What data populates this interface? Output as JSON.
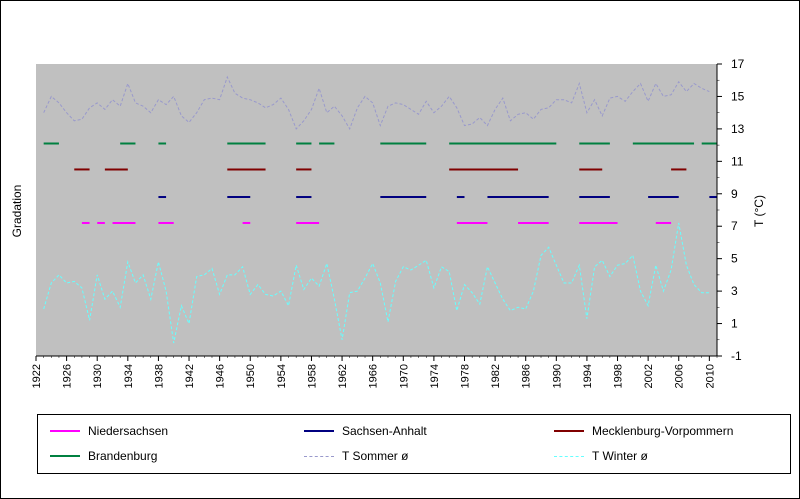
{
  "chart_data": {
    "type": "line",
    "ylabel_left": "Gradation",
    "ylabel_right": "T (°C)",
    "xlim": [
      1922,
      2011
    ],
    "ylim_right": [
      -1,
      17
    ],
    "x_ticks": [
      1922,
      1926,
      1930,
      1934,
      1938,
      1942,
      1946,
      1950,
      1954,
      1958,
      1962,
      1966,
      1970,
      1974,
      1978,
      1982,
      1986,
      1990,
      1994,
      1998,
      2002,
      2006,
      2010
    ],
    "y_ticks_right": [
      -1,
      1,
      3,
      5,
      7,
      9,
      11,
      13,
      15,
      17
    ],
    "grid": false,
    "plot_background": "#c0c0c0",
    "legend_position": "bottom",
    "series": [
      {
        "name": "Niedersachsen",
        "kind": "segments",
        "color": "#ff00ff",
        "level": 7.2,
        "segments": [
          [
            1928,
            1929
          ],
          [
            1930,
            1931
          ],
          [
            1932,
            1935
          ],
          [
            1938,
            1940
          ],
          [
            1949,
            1950
          ],
          [
            1956,
            1959
          ],
          [
            1977,
            1981
          ],
          [
            1985,
            1989
          ],
          [
            1993,
            1998
          ],
          [
            2003,
            2005
          ]
        ]
      },
      {
        "name": "Sachsen-Anhalt",
        "kind": "segments",
        "color": "#000080",
        "level": 8.8,
        "segments": [
          [
            1938,
            1939
          ],
          [
            1947,
            1950
          ],
          [
            1956,
            1958
          ],
          [
            1967,
            1973
          ],
          [
            1977,
            1978
          ],
          [
            1981,
            1989
          ],
          [
            1993,
            1997
          ],
          [
            2002,
            2006
          ],
          [
            2010,
            2011
          ]
        ]
      },
      {
        "name": "Mecklenburg-Vorpommern",
        "kind": "segments",
        "color": "#800000",
        "level": 10.5,
        "segments": [
          [
            1927,
            1929
          ],
          [
            1931,
            1934
          ],
          [
            1947,
            1952
          ],
          [
            1956,
            1958
          ],
          [
            1976,
            1985
          ],
          [
            1993,
            1996
          ],
          [
            2005,
            2007
          ]
        ]
      },
      {
        "name": "Brandenburg",
        "kind": "segments",
        "color": "#008040",
        "level": 12.1,
        "segments": [
          [
            1923,
            1925
          ],
          [
            1933,
            1935
          ],
          [
            1938,
            1939
          ],
          [
            1947,
            1952
          ],
          [
            1956,
            1958
          ],
          [
            1959,
            1961
          ],
          [
            1967,
            1973
          ],
          [
            1976,
            1990
          ],
          [
            1993,
            1997
          ],
          [
            2000,
            2008
          ],
          [
            2009,
            2011
          ]
        ]
      },
      {
        "name": "T Sommer ø",
        "kind": "line",
        "color": "#9999cc",
        "dashed": true,
        "x": [
          1923,
          1924,
          1925,
          1926,
          1927,
          1928,
          1929,
          1930,
          1931,
          1932,
          1933,
          1934,
          1935,
          1936,
          1937,
          1938,
          1939,
          1940,
          1941,
          1942,
          1943,
          1944,
          1945,
          1946,
          1947,
          1948,
          1949,
          1950,
          1951,
          1952,
          1953,
          1954,
          1955,
          1956,
          1957,
          1958,
          1959,
          1960,
          1961,
          1962,
          1963,
          1964,
          1965,
          1966,
          1967,
          1968,
          1969,
          1970,
          1971,
          1972,
          1973,
          1974,
          1975,
          1976,
          1977,
          1978,
          1979,
          1980,
          1981,
          1982,
          1983,
          1984,
          1985,
          1986,
          1987,
          1988,
          1989,
          1990,
          1991,
          1992,
          1993,
          1994,
          1995,
          1996,
          1997,
          1998,
          1999,
          2000,
          2001,
          2002,
          2003,
          2004,
          2005,
          2006,
          2007,
          2008,
          2009,
          2010
        ],
        "values": [
          14.0,
          15.0,
          14.6,
          14.0,
          13.5,
          13.6,
          14.3,
          14.6,
          14.2,
          14.8,
          14.4,
          15.8,
          14.6,
          14.4,
          14.0,
          14.8,
          14.5,
          15.0,
          13.8,
          13.4,
          14.0,
          14.8,
          14.9,
          14.8,
          16.2,
          15.2,
          14.9,
          14.8,
          14.6,
          14.3,
          14.5,
          14.9,
          14.2,
          13.0,
          13.5,
          14.2,
          15.5,
          14.0,
          14.4,
          13.8,
          13.0,
          14.3,
          15.0,
          14.6,
          13.2,
          14.4,
          14.6,
          14.5,
          14.2,
          13.9,
          14.7,
          14.0,
          14.4,
          15.0,
          14.3,
          13.2,
          13.3,
          13.7,
          13.2,
          14.2,
          14.9,
          13.5,
          13.9,
          14.0,
          13.6,
          14.2,
          14.3,
          14.8,
          14.8,
          14.6,
          15.8,
          14.0,
          14.8,
          13.8,
          14.9,
          15.0,
          14.7,
          15.3,
          15.8,
          14.7,
          15.8,
          15.0,
          15.1,
          15.9,
          15.3,
          15.8,
          15.5,
          15.3
        ]
      },
      {
        "name": "T Winter ø",
        "kind": "line",
        "color": "#66ffff",
        "dashed": true,
        "x": [
          1923,
          1924,
          1925,
          1926,
          1927,
          1928,
          1929,
          1930,
          1931,
          1932,
          1933,
          1934,
          1935,
          1936,
          1937,
          1938,
          1939,
          1940,
          1941,
          1942,
          1943,
          1944,
          1945,
          1946,
          1947,
          1948,
          1949,
          1950,
          1951,
          1952,
          1953,
          1954,
          1955,
          1956,
          1957,
          1958,
          1959,
          1960,
          1961,
          1962,
          1963,
          1964,
          1965,
          1966,
          1967,
          1968,
          1969,
          1970,
          1971,
          1972,
          1973,
          1974,
          1975,
          1976,
          1977,
          1978,
          1979,
          1980,
          1981,
          1982,
          1983,
          1984,
          1985,
          1986,
          1987,
          1988,
          1989,
          1990,
          1991,
          1992,
          1993,
          1994,
          1995,
          1996,
          1997,
          1998,
          1999,
          2000,
          2001,
          2002,
          2003,
          2004,
          2005,
          2006,
          2007,
          2008,
          2009,
          2010
        ],
        "values": [
          1.9,
          3.5,
          4.0,
          3.5,
          3.6,
          3.2,
          1.2,
          4.0,
          2.5,
          3.0,
          2.0,
          4.8,
          3.5,
          4.0,
          2.5,
          4.8,
          3.0,
          -0.2,
          2.1,
          1.0,
          3.9,
          4.0,
          4.4,
          2.8,
          4.0,
          4.0,
          4.5,
          2.8,
          3.4,
          2.8,
          2.7,
          3.0,
          2.1,
          4.6,
          3.1,
          3.8,
          3.3,
          4.7,
          2.5,
          0.0,
          2.9,
          3.0,
          3.8,
          4.7,
          3.5,
          1.1,
          3.6,
          4.5,
          4.3,
          4.6,
          4.9,
          3.2,
          4.5,
          4.2,
          1.8,
          3.4,
          2.9,
          2.2,
          4.5,
          3.5,
          2.5,
          1.8,
          2.0,
          1.9,
          3.0,
          5.2,
          5.7,
          4.6,
          3.5,
          3.5,
          4.6,
          1.3,
          4.5,
          4.9,
          3.9,
          4.6,
          4.7,
          5.2,
          3.0,
          2.1,
          4.6,
          3.0,
          4.3,
          7.2,
          4.6,
          3.4,
          2.9,
          2.9
        ]
      }
    ]
  }
}
